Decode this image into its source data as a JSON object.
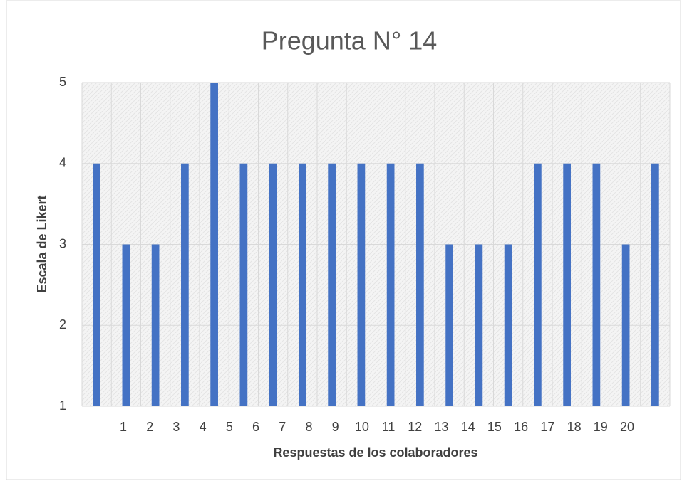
{
  "chart_data": {
    "type": "bar",
    "title": "Pregunta N° 14",
    "x_label": "Respuestas de los colaboradores",
    "y_label": "Escala de Likert",
    "categories": [
      "1",
      "2",
      "3",
      "4",
      "5",
      "6",
      "7",
      "8",
      "9",
      "10",
      "11",
      "12",
      "13",
      "14",
      "15",
      "16",
      "17",
      "18",
      "19",
      "20"
    ],
    "values": [
      4,
      3,
      3,
      4,
      5,
      4,
      4,
      4,
      4,
      4,
      4,
      4,
      3,
      3,
      3,
      4,
      4,
      4,
      3,
      4
    ],
    "color": "#4472c4",
    "ylim": [
      1,
      5
    ],
    "yticks": [
      1,
      2,
      3,
      4,
      5
    ],
    "grid": true
  }
}
